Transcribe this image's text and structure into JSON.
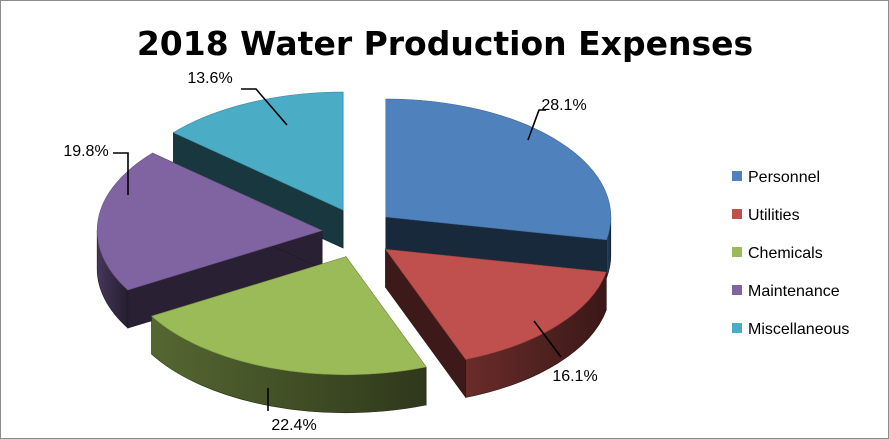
{
  "chart_data": {
    "type": "pie",
    "title": "2018 Water Production Expenses",
    "slices": [
      {
        "name": "Personnel",
        "value": 28.1,
        "label": "28.1%",
        "color": "#4f81bd"
      },
      {
        "name": "Utilities",
        "value": 16.1,
        "label": "16.1%",
        "color": "#c0504d"
      },
      {
        "name": "Chemicals",
        "value": 22.4,
        "label": "22.4%",
        "color": "#9bbb59"
      },
      {
        "name": "Maintenance",
        "value": 19.8,
        "label": "19.8%",
        "color": "#8064a2"
      },
      {
        "name": "Miscellaneous",
        "value": 13.6,
        "label": "13.6%",
        "color": "#4bacc6"
      }
    ],
    "style": "3d-exploded",
    "legend_position": "right"
  }
}
